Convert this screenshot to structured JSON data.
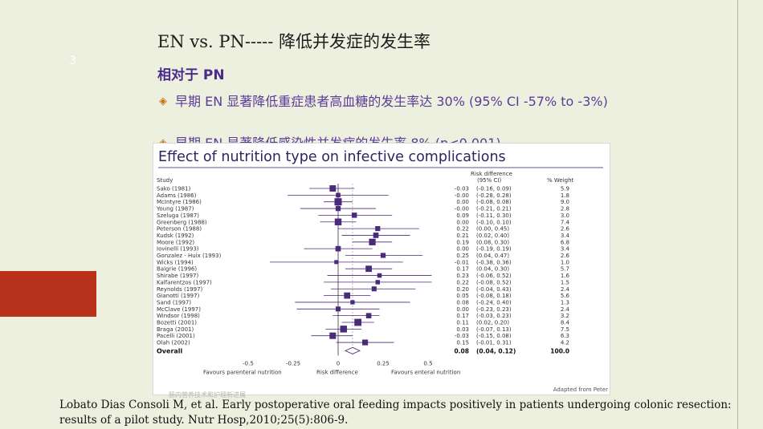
{
  "slide": {
    "number": "3",
    "title": "EN vs. PN----- 降低并发症的发生率",
    "subtitle": "相对于 PN",
    "bullets": [
      "早期 EN 显著降低重症患者高血糖的发生率达 30% (95% CI -57% to -3%)",
      "早期 EN 显著降低感染性并发症的发生率 8% (p<0.001)"
    ],
    "reference": "Lobato Dias Consoli M, et al.  Early postoperative oral feeding impacts positively in patients undergoing colonic resection: results of a pilot study.   Nutr Hosp,2010;25(5):806-9.",
    "watermark": "肠内营养技术和护理新进展"
  },
  "colors": {
    "background": "#eef0df",
    "accent_red": "#b8321c",
    "title_purple": "#4a2b8c",
    "bullet_purple": "#5a3c98",
    "bullet_symbol": "#c8700a",
    "plot_marker": "#4b2a7a"
  },
  "chart_data": {
    "type": "forest",
    "title": "Effect of nutrition type on infective complications",
    "columns": {
      "study": "Study",
      "risk_difference": "Risk difference",
      "ci": "(95% CI)",
      "weight": "% Weight"
    },
    "studies": [
      {
        "name": "Sako (1981)",
        "rd": -0.03,
        "rd_text": "-0.03",
        "ci_low": -0.16,
        "ci_high": 0.09,
        "ci_text": "(-0.16, 0.09)",
        "weight": 5.9
      },
      {
        "name": "Adams (1986)",
        "rd": 0.0,
        "rd_text": "-0.00",
        "ci_low": -0.28,
        "ci_high": 0.28,
        "ci_text": "(-0.28, 0.28)",
        "weight": 1.8
      },
      {
        "name": "McIntyre (1986)",
        "rd": 0.0,
        "rd_text": "0.00",
        "ci_low": -0.08,
        "ci_high": 0.08,
        "ci_text": "(-0.08, 0.08)",
        "weight": 9.0
      },
      {
        "name": "Young (1987)",
        "rd": 0.0,
        "rd_text": "-0.00",
        "ci_low": -0.21,
        "ci_high": 0.21,
        "ci_text": "(-0.21, 0.21)",
        "weight": 2.8
      },
      {
        "name": "Szeluga (1987)",
        "rd": 0.09,
        "rd_text": "0.09",
        "ci_low": -0.11,
        "ci_high": 0.3,
        "ci_text": "(-0.11, 0.30)",
        "weight": 3.0
      },
      {
        "name": "Greenberg (1988)",
        "rd": 0.0,
        "rd_text": "0.00",
        "ci_low": -0.1,
        "ci_high": 0.1,
        "ci_text": "(-0.10, 0.10)",
        "weight": 7.4
      },
      {
        "name": "Peterson (1988)",
        "rd": 0.22,
        "rd_text": "0.22",
        "ci_low": 0.0,
        "ci_high": 0.45,
        "ci_text": "(0.00, 0.45)",
        "weight": 2.6
      },
      {
        "name": "Kudsk (1992)",
        "rd": 0.21,
        "rd_text": "0.21",
        "ci_low": 0.02,
        "ci_high": 0.4,
        "ci_text": "(0.02, 0.40)",
        "weight": 3.4
      },
      {
        "name": "Moore (1992)",
        "rd": 0.19,
        "rd_text": "0.19",
        "ci_low": 0.08,
        "ci_high": 0.3,
        "ci_text": "(0.08, 0.30)",
        "weight": 6.8
      },
      {
        "name": "Iovinelli (1993)",
        "rd": 0.0,
        "rd_text": "0.00",
        "ci_low": -0.19,
        "ci_high": 0.19,
        "ci_text": "(-0.19, 0.19)",
        "weight": 3.4
      },
      {
        "name": "Gonzalez - Huix (1993)",
        "rd": 0.25,
        "rd_text": "0.25",
        "ci_low": 0.04,
        "ci_high": 0.47,
        "ci_text": "(0.04, 0.47)",
        "weight": 2.6
      },
      {
        "name": "Wicks (1994)",
        "rd": -0.01,
        "rd_text": "-0.01",
        "ci_low": -0.38,
        "ci_high": 0.36,
        "ci_text": "(-0.38, 0.36)",
        "weight": 1.0
      },
      {
        "name": "Baigrie (1996)",
        "rd": 0.17,
        "rd_text": "0.17",
        "ci_low": 0.04,
        "ci_high": 0.3,
        "ci_text": "(0.04, 0.30)",
        "weight": 5.7
      },
      {
        "name": "Shirabe (1997)",
        "rd": 0.23,
        "rd_text": "0.23",
        "ci_low": -0.06,
        "ci_high": 0.52,
        "ci_text": "(-0.06, 0.52)",
        "weight": 1.6
      },
      {
        "name": "Kalfarentzos (1997)",
        "rd": 0.22,
        "rd_text": "0.22",
        "ci_low": -0.08,
        "ci_high": 0.52,
        "ci_text": "(-0.08, 0.52)",
        "weight": 1.5
      },
      {
        "name": "Reynolds (1997)",
        "rd": 0.2,
        "rd_text": "0.20",
        "ci_low": -0.04,
        "ci_high": 0.43,
        "ci_text": "(-0.04, 0.43)",
        "weight": 2.4
      },
      {
        "name": "Gianotti (1997)",
        "rd": 0.05,
        "rd_text": "0.05",
        "ci_low": -0.08,
        "ci_high": 0.18,
        "ci_text": "(-0.08, 0.18)",
        "weight": 5.6
      },
      {
        "name": "Sand (1997)",
        "rd": 0.08,
        "rd_text": "0.08",
        "ci_low": -0.24,
        "ci_high": 0.4,
        "ci_text": "(-0.24, 0.40)",
        "weight": 1.3
      },
      {
        "name": "McClave (1997)",
        "rd": 0.0,
        "rd_text": "0.00",
        "ci_low": -0.23,
        "ci_high": 0.23,
        "ci_text": "(-0.23, 0.23)",
        "weight": 2.4
      },
      {
        "name": "Windsor (1998)",
        "rd": 0.17,
        "rd_text": "0.17",
        "ci_low": -0.03,
        "ci_high": 0.23,
        "ci_text": "(-0.03, 0.23)",
        "weight": 3.2
      },
      {
        "name": "Bozetti (2001)",
        "rd": 0.11,
        "rd_text": "0.11",
        "ci_low": 0.02,
        "ci_high": 0.2,
        "ci_text": "(0.02, 0.20)",
        "weight": 8.4
      },
      {
        "name": "Braga (2001)",
        "rd": 0.03,
        "rd_text": "0.03",
        "ci_low": -0.07,
        "ci_high": 0.13,
        "ci_text": "(-0.07, 0.13)",
        "weight": 7.5
      },
      {
        "name": "Pacelli (2001)",
        "rd": -0.03,
        "rd_text": "-0.03",
        "ci_low": -0.15,
        "ci_high": 0.08,
        "ci_text": "(-0.15, 0.08)",
        "weight": 6.3
      },
      {
        "name": "Olah (2002)",
        "rd": 0.15,
        "rd_text": "0.15",
        "ci_low": -0.01,
        "ci_high": 0.31,
        "ci_text": "(-0.01, 0.31)",
        "weight": 4.2
      }
    ],
    "overall": {
      "name": "Overall",
      "rd": 0.08,
      "rd_text": "0.08",
      "ci_low": 0.04,
      "ci_high": 0.12,
      "ci_text": "(0.04, 0.12)",
      "weight_text": "100.0"
    },
    "x_ticks": [
      -0.5,
      -0.25,
      0,
      0.25,
      0.5
    ],
    "x_tick_labels": [
      "-0.5",
      "-0.25",
      "0",
      "0.25",
      "0.5"
    ],
    "xlim": [
      -0.5,
      0.5
    ],
    "x_axis_labels": [
      "Favours parenteral nutrition",
      "Risk difference",
      "Favours enteral nutrition"
    ],
    "credit": "Adapted from Peter"
  }
}
